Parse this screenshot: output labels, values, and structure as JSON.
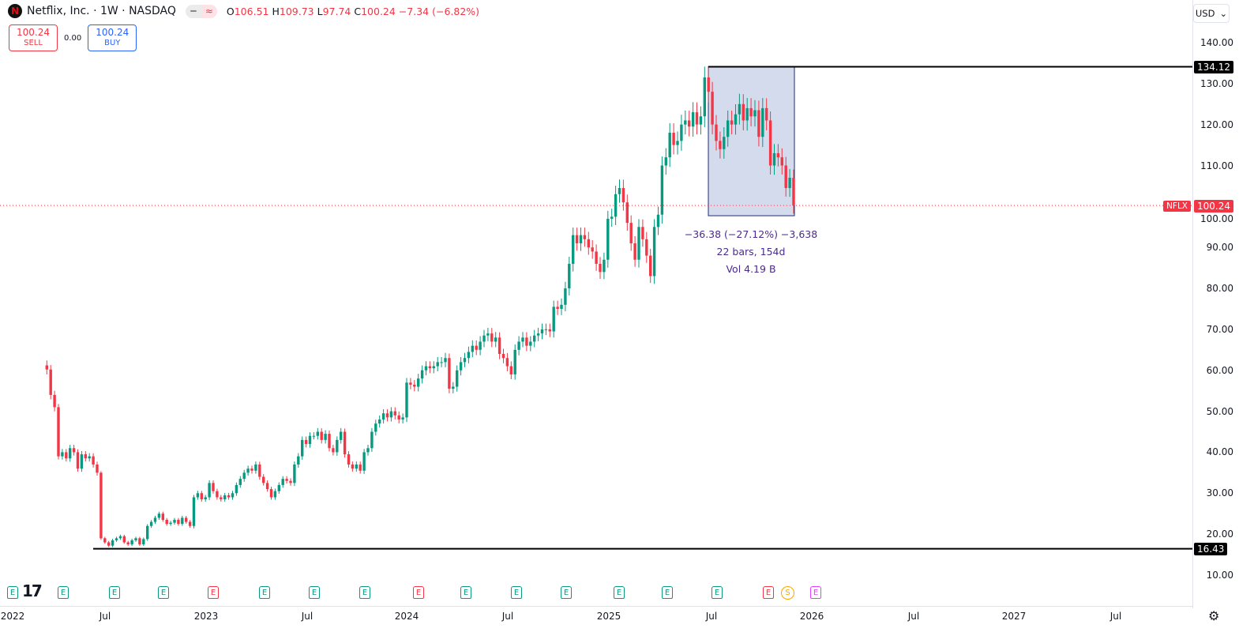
{
  "header": {
    "symbol": "Netflix, Inc. · 1W · NASDAQ",
    "logo_letter": "N",
    "open_label": "O",
    "open": "106.51",
    "high_label": "H",
    "high": "109.73",
    "low_label": "L",
    "low": "97.74",
    "close_label": "C",
    "close": "100.24",
    "change": "−7.34 (−6.82%)"
  },
  "trade": {
    "sell_price": "100.24",
    "sell_label": "SELL",
    "spread": "0.00",
    "buy_price": "100.24",
    "buy_label": "BUY"
  },
  "currency": "USD",
  "tags": {
    "high_line": "134.12",
    "low_line": "16.43",
    "symbol": "NFLX",
    "last": "100.24"
  },
  "measure": {
    "line1": "−36.38 (−27.12%) −3,638",
    "line2": "22 bars, 154d",
    "line3": "Vol 4.19 B"
  },
  "events": [
    {
      "t": "E",
      "c": "#089981"
    },
    {
      "t": "E",
      "c": "#089981"
    },
    {
      "t": "E",
      "c": "#089981"
    },
    {
      "t": "E",
      "c": "#089981"
    },
    {
      "t": "E",
      "c": "#f23645"
    },
    {
      "t": "E",
      "c": "#089981"
    },
    {
      "t": "E",
      "c": "#089981"
    },
    {
      "t": "E",
      "c": "#089981"
    },
    {
      "t": "E",
      "c": "#f23645"
    },
    {
      "t": "E",
      "c": "#089981"
    },
    {
      "t": "E",
      "c": "#089981"
    },
    {
      "t": "E",
      "c": "#089981"
    },
    {
      "t": "E",
      "c": "#089981"
    },
    {
      "t": "E",
      "c": "#089981"
    },
    {
      "t": "E",
      "c": "#089981"
    },
    {
      "t": "E",
      "c": "#f23645"
    },
    {
      "t": "S",
      "c": "#f7a600"
    },
    {
      "t": "E",
      "c": "#e040fb"
    }
  ],
  "chart_data": {
    "type": "candlestick",
    "interval": "1W",
    "colors": {
      "up": "#089981",
      "down": "#f23645",
      "measure_fill": "#d3dbec",
      "measure_border": "#1c2e7a"
    },
    "y_ticks": [
      "140.00",
      "130.00",
      "120.00",
      "110.00",
      "100.00",
      "90.00",
      "80.00",
      "70.00",
      "60.00",
      "50.00",
      "40.00",
      "30.00",
      "20.00",
      "10.00"
    ],
    "x_ticks": [
      "2022",
      "Jul",
      "2023",
      "Jul",
      "2024",
      "Jul",
      "2025",
      "Jul",
      "2026",
      "Jul",
      "2027",
      "Jul"
    ],
    "ylim": [
      10,
      140
    ],
    "horizontal_lines": [
      134.12,
      16.43
    ],
    "last_price": 100.24,
    "closes": [
      60.2,
      54,
      51,
      39,
      40,
      38.5,
      41,
      40,
      36,
      39.5,
      38.5,
      39,
      37,
      35,
      19,
      18,
      17.2,
      18.5,
      19,
      19.5,
      18,
      17.5,
      18.5,
      19,
      17.5,
      18.8,
      22,
      23,
      24,
      25,
      23.5,
      22.5,
      22.8,
      23.5,
      22.5,
      24,
      23,
      22,
      29,
      30,
      28.5,
      29,
      32.5,
      30.5,
      29,
      28.5,
      29.5,
      29,
      30,
      32,
      33.5,
      35,
      36,
      35.5,
      37,
      34,
      32.5,
      31,
      29,
      30.5,
      32,
      33.5,
      33,
      32.5,
      37,
      39,
      43,
      42,
      44,
      44,
      45,
      43,
      44.5,
      41,
      40,
      43,
      45,
      39.5,
      37,
      36,
      37,
      35.5,
      40,
      41,
      45,
      47,
      48,
      49.5,
      48.5,
      50,
      49,
      48,
      48.5,
      57,
      56.5,
      56,
      58,
      60,
      61,
      60.5,
      61,
      62,
      62,
      63,
      55.5,
      56,
      60,
      62,
      63,
      64.5,
      66,
      65,
      67,
      68.5,
      69,
      67,
      68,
      64,
      63,
      61,
      59,
      65,
      67,
      68,
      66,
      67,
      68.5,
      69,
      70,
      70,
      69.5,
      75.5,
      75,
      76,
      80,
      86,
      93,
      91,
      93,
      92,
      90,
      89,
      86,
      84,
      87,
      97,
      97.5,
      103,
      104.5,
      101,
      96,
      91,
      87,
      95,
      92,
      88,
      83,
      95,
      98,
      110,
      112,
      118,
      115,
      116,
      120,
      121,
      119.5,
      123,
      120,
      122,
      131.5,
      128,
      120,
      116,
      114,
      117,
      121,
      120,
      122.5,
      125,
      121,
      124,
      122,
      123.5,
      117,
      124,
      121,
      110,
      113,
      112,
      110,
      104.5,
      107,
      100.24
    ]
  }
}
